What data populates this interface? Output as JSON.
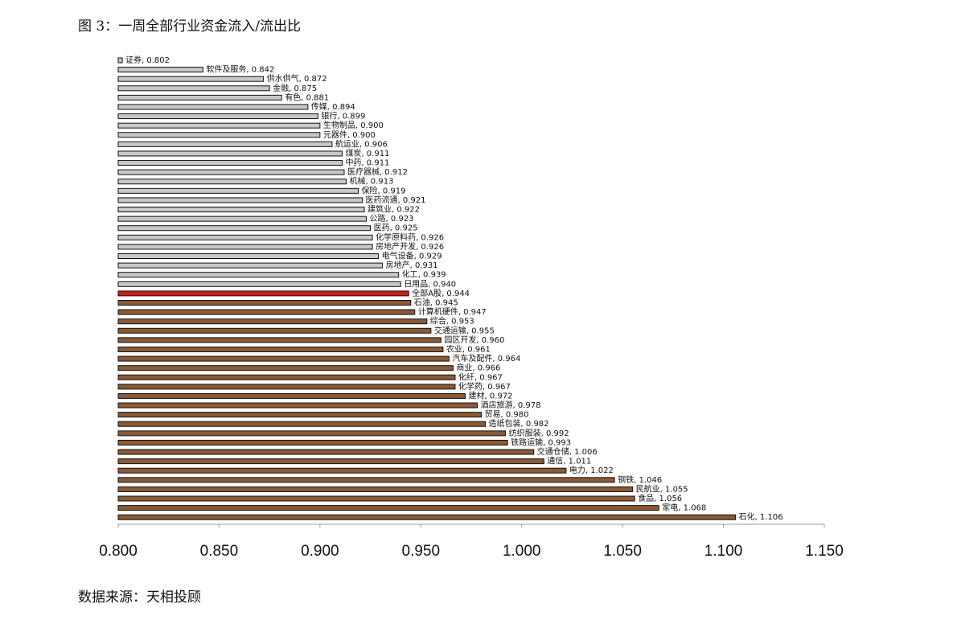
{
  "chart_data": {
    "type": "barh",
    "title": "图 3：一周全部行业资金流入/流出比",
    "source": "数据来源：天相投顾",
    "categories": [
      "证券",
      "软件及服务",
      "供水供气",
      "金融",
      "有色",
      "传媒",
      "银行",
      "生物制品",
      "元器件",
      "航运业",
      "煤炭",
      "中药",
      "医疗器械",
      "机械",
      "保险",
      "医药流通",
      "建筑业",
      "公路",
      "医药",
      "化学原料药",
      "房地产开发",
      "电气设备",
      "房地产",
      "化工",
      "日用品",
      "全部A股",
      "石油",
      "计算机硬件",
      "综合",
      "交通运输",
      "园区开发",
      "农业",
      "汽车及配件",
      "商业",
      "化纤",
      "化学药",
      "建材",
      "酒店旅游",
      "贸易",
      "造纸包装",
      "纺织服装",
      "铁路运输",
      "交通仓储",
      "通信",
      "电力",
      "钢铁",
      "民航业",
      "食品",
      "家电",
      "石化"
    ],
    "values": [
      0.802,
      0.842,
      0.872,
      0.875,
      0.881,
      0.894,
      0.899,
      0.9,
      0.9,
      0.906,
      0.911,
      0.911,
      0.912,
      0.913,
      0.919,
      0.921,
      0.922,
      0.923,
      0.925,
      0.926,
      0.926,
      0.929,
      0.931,
      0.939,
      0.94,
      0.944,
      0.945,
      0.947,
      0.953,
      0.955,
      0.96,
      0.961,
      0.964,
      0.966,
      0.967,
      0.967,
      0.972,
      0.978,
      0.98,
      0.982,
      0.992,
      0.993,
      1.006,
      1.011,
      1.022,
      1.046,
      1.055,
      1.056,
      1.068,
      1.106
    ],
    "value_labels": [
      ", 0.802",
      ", 0.842",
      ", 0.872",
      ", 0.875",
      ", 0.881",
      ", 0.894",
      ", 0.899",
      ", 0.900",
      ", 0.900",
      ", 0.906",
      ", 0.911",
      ", 0.911",
      ", 0.912",
      ", 0.913",
      ", 0.919",
      ", 0.921",
      ", 0.922",
      ", 0.923",
      ", 0.925",
      ", 0.926",
      ", 0.926",
      ", 0.929",
      ", 0.931",
      ", 0.939",
      ", 0.940",
      ", 0.944",
      ", 0.945",
      ", 0.947",
      ", 0.953",
      ", 0.955",
      ", 0.960",
      ", 0.961",
      ", 0.964",
      ", 0.966",
      ", 0.967",
      ", 0.967",
      ", 0.972",
      ", 0.978",
      ", 0.980",
      ", 0.982",
      ", 0.992",
      ", 0.993",
      ", 1.006",
      ", 1.011",
      ", 1.022",
      ", 1.046",
      ", 1.055",
      ", 1.056",
      ", 1.068",
      ", 1.106"
    ],
    "colors": [
      "#c8c8c8",
      "#c8c8c8",
      "#c8c8c8",
      "#c8c8c8",
      "#c8c8c8",
      "#c8c8c8",
      "#c8c8c8",
      "#c8c8c8",
      "#c8c8c8",
      "#c8c8c8",
      "#c8c8c8",
      "#c8c8c8",
      "#c8c8c8",
      "#c8c8c8",
      "#c8c8c8",
      "#c8c8c8",
      "#c8c8c8",
      "#c8c8c8",
      "#c8c8c8",
      "#c8c8c8",
      "#c8c8c8",
      "#c8c8c8",
      "#c8c8c8",
      "#c8c8c8",
      "#c8c8c8",
      "#d01818",
      "#8a5a36",
      "#8a5a36",
      "#8a5a36",
      "#8a5a36",
      "#8a5a36",
      "#8a5a36",
      "#8a5a36",
      "#8a5a36",
      "#8a5a36",
      "#8a5a36",
      "#8a5a36",
      "#8a5a36",
      "#8a5a36",
      "#8a5a36",
      "#8a5a36",
      "#8a5a36",
      "#8a5a36",
      "#8a5a36",
      "#8a5a36",
      "#8a5a36",
      "#8a5a36",
      "#8a5a36",
      "#8a5a36",
      "#8a5a36"
    ],
    "xlim": [
      0.8,
      1.15
    ],
    "xticks": [
      {
        "value": 0.8,
        "label": "0.800"
      },
      {
        "value": 0.85,
        "label": "0.850"
      },
      {
        "value": 0.9,
        "label": "0.900"
      },
      {
        "value": 0.95,
        "label": "0.950"
      },
      {
        "value": 1.0,
        "label": "1.000"
      },
      {
        "value": 1.05,
        "label": "1.050"
      },
      {
        "value": 1.1,
        "label": "1.100"
      },
      {
        "value": 1.15,
        "label": "1.150"
      }
    ]
  }
}
